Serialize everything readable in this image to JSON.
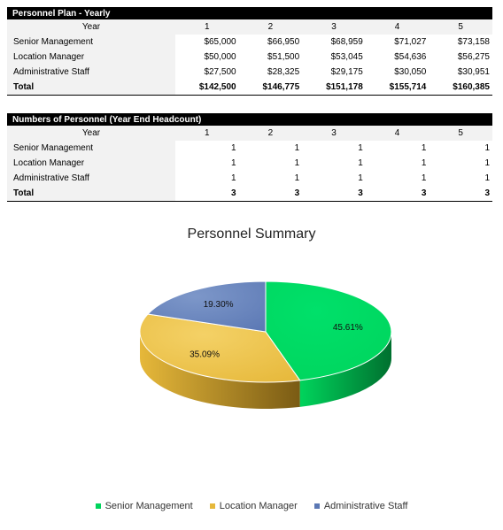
{
  "plan": {
    "title": "Personnel Plan - Yearly",
    "year_label": "Year",
    "years": [
      "1",
      "2",
      "3",
      "4",
      "5"
    ],
    "rows": [
      {
        "label": "Senior Management",
        "values": [
          "$65,000",
          "$66,950",
          "$68,959",
          "$71,027",
          "$73,158"
        ]
      },
      {
        "label": "Location Manager",
        "values": [
          "$50,000",
          "$51,500",
          "$53,045",
          "$54,636",
          "$56,275"
        ]
      },
      {
        "label": "Administrative Staff",
        "values": [
          "$27,500",
          "$28,325",
          "$29,175",
          "$30,050",
          "$30,951"
        ]
      }
    ],
    "total": {
      "label": "Total",
      "values": [
        "$142,500",
        "$146,775",
        "$151,178",
        "$155,714",
        "$160,385"
      ]
    }
  },
  "headcount": {
    "title": "Numbers of Personnel (Year End Headcount)",
    "year_label": "Year",
    "years": [
      "1",
      "2",
      "3",
      "4",
      "5"
    ],
    "rows": [
      {
        "label": "Senior Management",
        "values": [
          "1",
          "1",
          "1",
          "1",
          "1"
        ]
      },
      {
        "label": "Location Manager",
        "values": [
          "1",
          "1",
          "1",
          "1",
          "1"
        ]
      },
      {
        "label": "Administrative Staff",
        "values": [
          "1",
          "1",
          "1",
          "1",
          "1"
        ]
      }
    ],
    "total": {
      "label": "Total",
      "values": [
        "3",
        "3",
        "3",
        "3",
        "3"
      ]
    }
  },
  "chart_data": {
    "type": "pie",
    "title": "Personnel Summary",
    "categories": [
      "Senior Management",
      "Location Manager",
      "Administrative Staff"
    ],
    "values": [
      45.61,
      35.09,
      19.3
    ],
    "labels": [
      "45.61%",
      "35.09%",
      "19.30%"
    ],
    "colors": [
      "#00d45c",
      "#e6b83a",
      "#5b78b4"
    ],
    "legend": "bottom"
  }
}
